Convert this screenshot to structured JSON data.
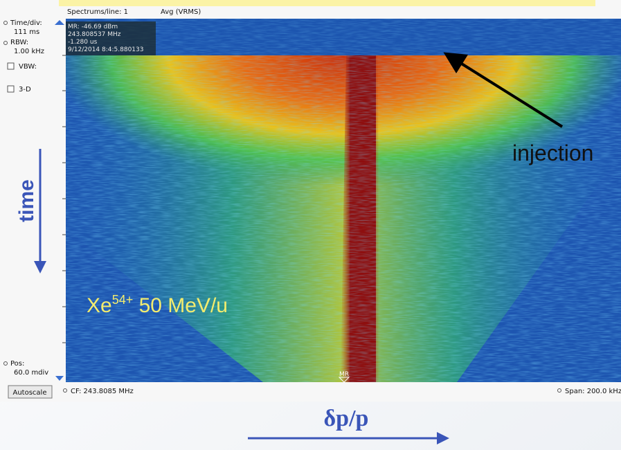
{
  "toolbar": {
    "spectrums_per_line": "Spectrums/line: 1",
    "averaging": "Avg (VRMS)"
  },
  "side_panel": {
    "time_div_label": "Time/div:",
    "time_div_value": "111 ms",
    "rbw_label": "RBW:",
    "rbw_value": "1.00 kHz",
    "vbw_label": "VBW:",
    "three_d_label": "3-D",
    "pos_label": "Pos:",
    "pos_value": "60.0 mdiv",
    "autoscale_button": "Autoscale"
  },
  "marker_readout": [
    "MR: -46.69 dBm",
    "243.808537 MHz",
    "-1.280 us",
    "9/12/2014 8:4:5.880133"
  ],
  "marker_tag": "MR",
  "status_bar": {
    "center_frequency": "CF: 243.8085 MHz",
    "span": "Span: 200.0 kHz"
  },
  "annotations": {
    "injection": "injection",
    "time_axis": "time",
    "ion": "Xe",
    "charge": "54+",
    "energy": " 50 MeV/u",
    "momentum_axis": "δp/p"
  }
}
